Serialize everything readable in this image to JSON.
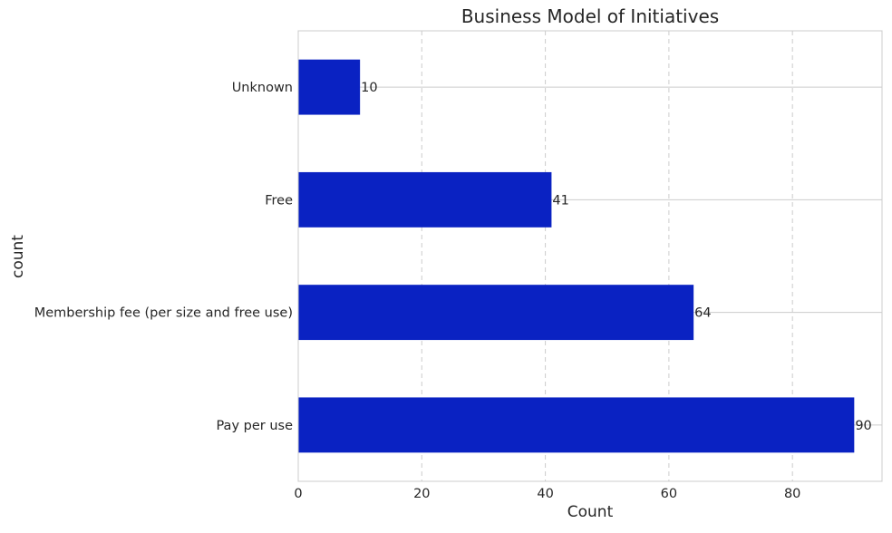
{
  "chart_data": {
    "type": "bar",
    "orientation": "horizontal",
    "title": "Business Model of Initiatives",
    "xlabel": "Count",
    "ylabel": "count",
    "categories": [
      "Unknown",
      "Free",
      "Membership fee (per size and free use)",
      "Pay per use"
    ],
    "values": [
      10,
      41,
      64,
      90
    ],
    "xlim": [
      0,
      94.5
    ],
    "xticks": [
      "0",
      "20",
      "40",
      "60",
      "80"
    ],
    "grid": true,
    "legend": "none",
    "colors": {
      "bar": "#0a22c2",
      "grid": "#cccccc",
      "frame": "#cccccc",
      "background": "#ffffff"
    }
  }
}
